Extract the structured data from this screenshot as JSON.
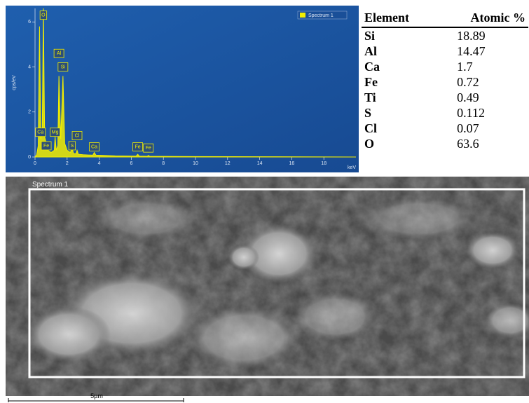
{
  "chart_data": {
    "type": "line",
    "legend": "Spectrum 1",
    "y_label": "cps/eV",
    "x_label": "keV",
    "x": [
      0,
      0.1,
      0.2,
      0.28,
      0.36,
      0.45,
      0.52,
      0.6,
      0.7,
      0.8,
      1.0,
      1.2,
      1.25,
      1.32,
      1.42,
      1.49,
      1.6,
      1.74,
      1.85,
      2.0,
      2.2,
      2.31,
      2.4,
      2.55,
      2.62,
      2.7,
      3.0,
      3.6,
      3.69,
      3.8,
      5,
      6.3,
      6.4,
      6.5,
      7.0,
      7.06,
      7.15,
      10,
      15,
      20
    ],
    "series": [
      {
        "name": "Spectrum 1",
        "color": "#f2ee00",
        "values": [
          0,
          0.1,
          0.5,
          5.8,
          0.8,
          1.2,
          6.6,
          0.9,
          0.6,
          0.3,
          0.2,
          0.3,
          0.9,
          0.3,
          0.5,
          3.6,
          0.8,
          3.6,
          0.6,
          0.3,
          0.2,
          0.4,
          0.15,
          0.15,
          0.3,
          0.12,
          0.1,
          0.08,
          0.2,
          0.08,
          0.05,
          0.04,
          0.12,
          0.04,
          0.03,
          0.07,
          0.03,
          0.02,
          0.01,
          0
        ]
      }
    ],
    "annotations": [
      {
        "text": "O",
        "x": 0.52,
        "y": 6.3
      },
      {
        "text": "Al",
        "x": 1.49,
        "y": 4.6
      },
      {
        "text": "Si",
        "x": 1.74,
        "y": 4.0
      },
      {
        "text": "Ca",
        "x": 0.34,
        "y": 1.1
      },
      {
        "text": "Mg",
        "x": 1.25,
        "y": 1.1
      },
      {
        "text": "Fe",
        "x": 0.7,
        "y": 0.5
      },
      {
        "text": "S",
        "x": 2.31,
        "y": 0.5
      },
      {
        "text": "Cl",
        "x": 2.62,
        "y": 0.95
      },
      {
        "text": "Ca",
        "x": 3.69,
        "y": 0.45
      },
      {
        "text": "Fe",
        "x": 6.4,
        "y": 0.45
      },
      {
        "text": "Fe",
        "x": 7.06,
        "y": 0.4
      }
    ],
    "xlim": [
      0,
      20
    ],
    "xticks": [
      0,
      2,
      4,
      6,
      8,
      10,
      12,
      14,
      16,
      18
    ],
    "ylim": [
      0,
      6.6
    ],
    "yticks": [
      0,
      2,
      4,
      6
    ]
  },
  "table": {
    "header": [
      "Element",
      "Atomic %"
    ],
    "rows": [
      [
        "Si",
        "18.89"
      ],
      [
        "Al",
        "14.47"
      ],
      [
        "Ca",
        "1.7"
      ],
      [
        "Fe",
        "0.72"
      ],
      [
        "Ti",
        "0.49"
      ],
      [
        "S",
        "0.112"
      ],
      [
        "Cl",
        "0.07"
      ],
      [
        "O",
        "63.6"
      ]
    ]
  },
  "image": {
    "label": "Spectrum 1",
    "scale_bar": "5µm"
  }
}
